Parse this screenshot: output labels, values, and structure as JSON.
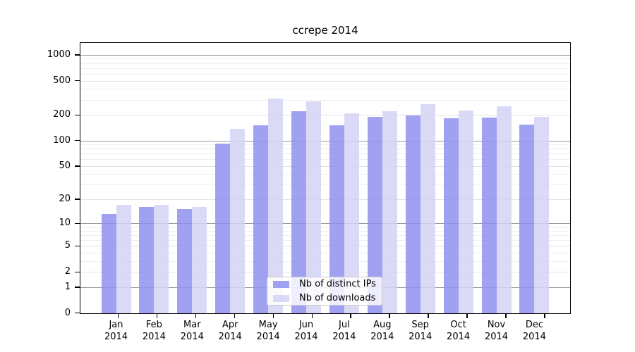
{
  "title": "ccrepe 2014",
  "chart_data": {
    "type": "bar",
    "title": "ccrepe 2014",
    "categories": [
      "Jan 2014",
      "Feb 2014",
      "Mar 2014",
      "Apr 2014",
      "May 2014",
      "Jun 2014",
      "Jul 2014",
      "Aug 2014",
      "Sep 2014",
      "Oct 2014",
      "Nov 2014",
      "Dec 2014"
    ],
    "series": [
      {
        "name": "Nb of distinct IPs",
        "color": "#9191ee",
        "rendered_color": "#a2a2f1",
        "values": [
          13,
          16,
          15,
          92,
          152,
          220,
          152,
          188,
          197,
          182,
          185,
          155
        ]
      },
      {
        "name": "Nb of downloads",
        "color": "#d3d3f6",
        "rendered_color": "#dadaf8",
        "values": [
          17,
          17,
          16,
          138,
          308,
          288,
          206,
          218,
          266,
          226,
          253,
          190
        ]
      }
    ],
    "xlabel": "",
    "ylabel": "",
    "y_scale": "log10(1+x)",
    "y_ticks": [
      0,
      1,
      2,
      5,
      10,
      20,
      50,
      100,
      200,
      500,
      1000
    ],
    "y_minor_gridlines": [
      3,
      4,
      6,
      7,
      8,
      9,
      30,
      40,
      60,
      70,
      80,
      90,
      300,
      400,
      600,
      700,
      800,
      900
    ],
    "y_decade_gridlines": [
      1,
      10,
      100,
      1000
    ],
    "ylim": [
      0,
      1400
    ],
    "grid": true,
    "legend_position": "bottom-center",
    "colors": {
      "grid_decade": "#999999",
      "grid_light": "#e2e2e2",
      "grid_minor": "#efefef",
      "axis": "#000000",
      "legend_border": "#cccccc"
    }
  }
}
